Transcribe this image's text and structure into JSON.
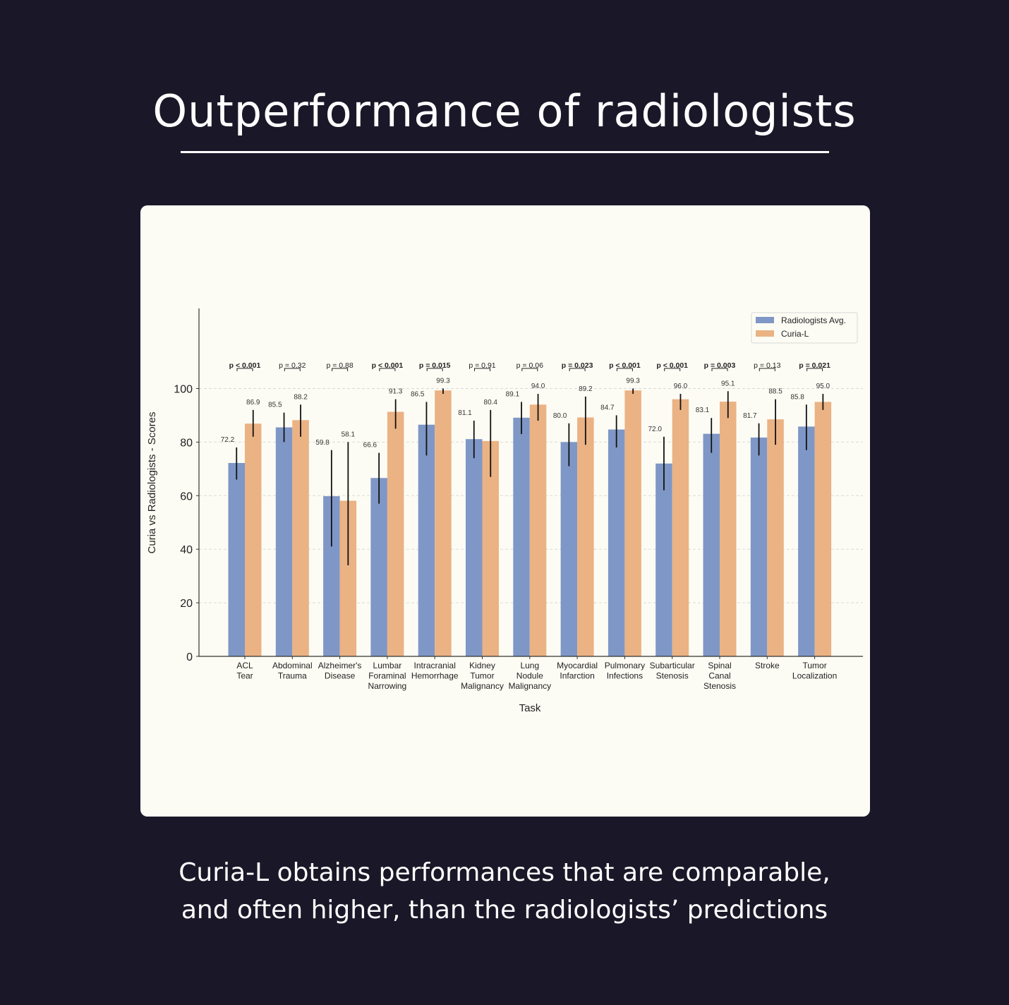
{
  "header": {
    "title": "Outperformance of radiologists"
  },
  "caption": {
    "line1": "Curia-L obtains performances that are comparable,",
    "line2": "and often higher, than the radiologists’ predictions"
  },
  "colors": {
    "radiologists": "#7f97c6",
    "curia": "#ebb284",
    "card_bg": "#fdfcf4",
    "page_bg": "#1a1828"
  },
  "chart_data": {
    "type": "bar",
    "xlabel": "Task",
    "ylabel": "Curia vs Radiologists - Scores",
    "ylim": [
      0,
      130
    ],
    "yticks": [
      0,
      20,
      40,
      60,
      80,
      100
    ],
    "grid": "horizontal dashed",
    "legend_position": "top-right",
    "categories": [
      [
        "ACL",
        "Tear"
      ],
      [
        "Abdominal",
        "Trauma"
      ],
      [
        "Alzheimer's",
        "Disease"
      ],
      [
        "Lumbar",
        "Foraminal",
        "Narrowing"
      ],
      [
        "Intracranial",
        "Hemorrhage"
      ],
      [
        "Kidney",
        "Tumor",
        "Malignancy"
      ],
      [
        "Lung",
        "Nodule",
        "Malignancy"
      ],
      [
        "Myocardial",
        "Infarction"
      ],
      [
        "Pulmonary",
        "Infections"
      ],
      [
        "Subarticular",
        "Stenosis"
      ],
      [
        "Spinal",
        "Canal",
        "Stenosis"
      ],
      [
        "Stroke"
      ],
      [
        "Tumor",
        "Localization"
      ]
    ],
    "series": [
      {
        "name": "Radiologists Avg.",
        "values": [
          72.2,
          85.5,
          59.8,
          66.6,
          86.5,
          81.1,
          89.1,
          80.0,
          84.7,
          72.0,
          83.1,
          81.7,
          85.8
        ],
        "labels": [
          "72.2",
          "85.5",
          "59.8",
          "66.6",
          "86.5",
          "81.1",
          "89.1",
          "80.0",
          "84.7",
          "72.0",
          "83.1",
          "81.7",
          "85.8"
        ],
        "err_low": [
          66,
          80,
          41,
          57,
          75,
          74,
          83,
          71,
          78,
          62,
          76,
          75,
          77
        ],
        "err_high": [
          78,
          91,
          77,
          76,
          95,
          88,
          95,
          87,
          90,
          82,
          89,
          87,
          94
        ]
      },
      {
        "name": "Curia-L",
        "values": [
          86.9,
          88.2,
          58.1,
          91.3,
          99.3,
          80.4,
          94.0,
          89.2,
          99.3,
          96.0,
          95.1,
          88.5,
          95.0
        ],
        "labels": [
          "86.9",
          "88.2",
          "58.1",
          "91.3",
          "99.3",
          "80.4",
          "94.0",
          "89.2",
          "99.3",
          "96.0",
          "95.1",
          "88.5",
          "95.0"
        ],
        "err_low": [
          82,
          82,
          34,
          85,
          98,
          67,
          88,
          79,
          98,
          92,
          89,
          79,
          92
        ],
        "err_high": [
          92,
          94,
          80,
          96,
          100,
          92,
          98,
          97,
          100,
          98,
          99,
          96,
          98
        ]
      }
    ],
    "pvalues": [
      {
        "text": "p < 0.001",
        "bold": true
      },
      {
        "text": "p = 0.32",
        "bold": false
      },
      {
        "text": "p = 0.88",
        "bold": false
      },
      {
        "text": "p < 0.001",
        "bold": true
      },
      {
        "text": "p = 0.015",
        "bold": true
      },
      {
        "text": "p = 0.91",
        "bold": false
      },
      {
        "text": "p = 0.06",
        "bold": false
      },
      {
        "text": "p = 0.023",
        "bold": true
      },
      {
        "text": "p < 0.001",
        "bold": true
      },
      {
        "text": "p < 0.001",
        "bold": true
      },
      {
        "text": "p = 0.003",
        "bold": true
      },
      {
        "text": "p = 0.13",
        "bold": false
      },
      {
        "text": "p = 0.021",
        "bold": true
      }
    ]
  }
}
